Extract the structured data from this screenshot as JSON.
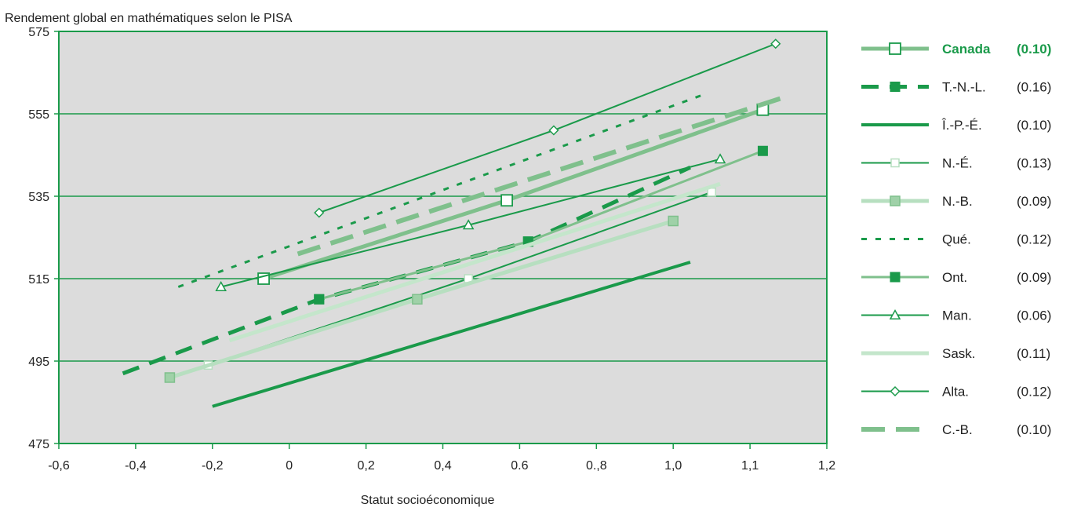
{
  "chart_data": {
    "type": "line",
    "title": "Rendement global en mathématiques selon le PISA",
    "xlabel": "Statut socioéconomique",
    "ylabel": "Rendement global en mathématiques selon le PISA",
    "xlim": [
      -0.6,
      1.2
    ],
    "ylim": [
      475,
      575
    ],
    "x_tick_labels": [
      "-0,6",
      "-0,4",
      "-0,2",
      "0",
      "0,2",
      "0,4",
      "0.6",
      "0.,8",
      "1,0",
      "1,1",
      "1,2"
    ],
    "y_ticks": [
      475,
      495,
      515,
      535,
      555,
      575
    ],
    "grid": "horizontal",
    "plot_background": "#dcdcdc",
    "legend_position": "right",
    "series": [
      {
        "name": "Canada",
        "coef": "(0.10)",
        "bold": true,
        "color": "#7fc08c",
        "width": 5,
        "dash": "",
        "marker": "square-open",
        "marker_size": 14,
        "x": [
          -0.12,
          0.45,
          1.05
        ],
        "y": [
          515,
          534,
          556
        ],
        "marker_x": [
          -0.12,
          0.45,
          1.05
        ]
      },
      {
        "name": "T.-N.-L.",
        "coef": "(0.16)",
        "color": "#1a9a4a",
        "width": 5,
        "dash": "22,14",
        "marker": "square-filled",
        "marker_size": 12,
        "x": [
          -0.45,
          0.01,
          0.5,
          0.88
        ],
        "y": [
          492,
          510,
          524,
          542
        ],
        "marker_x": [
          0.01,
          0.5
        ]
      },
      {
        "name": "Î.-P.-É.",
        "coef": "(0.10)",
        "color": "#1a9a4a",
        "width": 4,
        "dash": "",
        "marker": "none",
        "marker_size": 0,
        "x": [
          -0.24,
          0.88
        ],
        "y": [
          484,
          519
        ],
        "marker_x": []
      },
      {
        "name": "N.-É.",
        "coef": "(0.13)",
        "color": "#1a9a4a",
        "width": 2,
        "dash": "",
        "marker": "square-open-light",
        "marker_size": 10,
        "x": [
          -0.25,
          0.36,
          0.93
        ],
        "y": [
          494,
          515,
          536
        ],
        "marker_x": [
          -0.25,
          0.36,
          0.93
        ]
      },
      {
        "name": "N.-B.",
        "coef": "(0.09)",
        "color": "#b7dfc0",
        "width": 5,
        "dash": "",
        "marker": "square-light-filled",
        "marker_size": 12,
        "x": [
          -0.34,
          0.24,
          0.84
        ],
        "y": [
          491,
          510,
          529
        ],
        "marker_x": [
          -0.34,
          0.24,
          0.84
        ]
      },
      {
        "name": "Qué.",
        "coef": "(0.12)",
        "color": "#1a9a4a",
        "width": 3,
        "dash": "7,11",
        "marker": "none",
        "marker_size": 0,
        "x": [
          -0.32,
          0.92
        ],
        "y": [
          513,
          560
        ],
        "marker_x": []
      },
      {
        "name": "Ont.",
        "coef": "(0.09)",
        "color": "#7fc08c",
        "width": 3,
        "dash": "",
        "marker": "square-filled",
        "marker_size": 12,
        "x": [
          0.01,
          0.5,
          1.05
        ],
        "y": [
          510,
          524,
          546
        ],
        "marker_x": [
          0.01,
          0.5,
          1.05
        ]
      },
      {
        "name": "Man.",
        "coef": "(0.06)",
        "color": "#1a9a4a",
        "width": 2,
        "dash": "",
        "marker": "triangle-open",
        "marker_size": 12,
        "x": [
          -0.22,
          0.36,
          0.95
        ],
        "y": [
          513,
          528,
          544
        ],
        "marker_x": [
          -0.22,
          0.36,
          0.95
        ]
      },
      {
        "name": "Sask.",
        "coef": "(0.11)",
        "color": "#c4e6cb",
        "width": 5,
        "dash": "",
        "marker": "none",
        "marker_size": 0,
        "x": [
          -0.2,
          0.95
        ],
        "y": [
          500,
          538
        ],
        "marker_x": []
      },
      {
        "name": "Alta.",
        "coef": "(0.12)",
        "color": "#1a9a4a",
        "width": 2,
        "dash": "",
        "marker": "diamond-open",
        "marker_size": 11,
        "x": [
          0.01,
          0.56,
          1.08
        ],
        "y": [
          531,
          551,
          572
        ],
        "marker_x": [
          0.01,
          0.56,
          1.08
        ]
      },
      {
        "name": "C.-B.",
        "coef": "(0.10)",
        "color": "#7fc08c",
        "width": 6,
        "dash": "30,14",
        "marker": "none",
        "marker_size": 0,
        "x": [
          -0.04,
          1.1
        ],
        "y": [
          521,
          559
        ],
        "marker_x": []
      }
    ]
  }
}
